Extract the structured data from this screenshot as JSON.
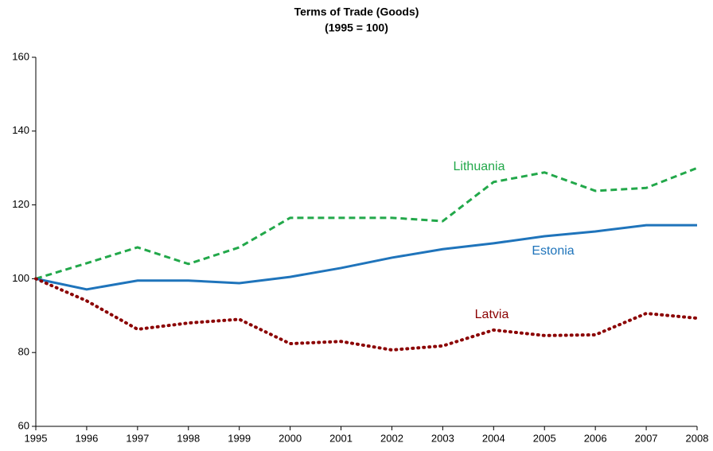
{
  "chart_data": {
    "type": "line",
    "title": "Terms of Trade (Goods)",
    "subtitle": "(1995 = 100)",
    "x": [
      1995,
      1996,
      1997,
      1998,
      1999,
      2000,
      2001,
      2002,
      2003,
      2004,
      2005,
      2006,
      2007,
      2008
    ],
    "xlim": [
      1995,
      2008
    ],
    "xticks": [
      1995,
      1996,
      1997,
      1998,
      1999,
      2000,
      2001,
      2002,
      2003,
      2004,
      2005,
      2006,
      2007,
      2008
    ],
    "ylim": [
      60,
      160
    ],
    "yticks": [
      60,
      80,
      100,
      120,
      140,
      160
    ],
    "grid": false,
    "series": [
      {
        "name": "Lithuania",
        "color": "#22a84a",
        "style": "dashed",
        "values": [
          100,
          104.2,
          108.5,
          104,
          108.5,
          116.5,
          116.5,
          116.5,
          115.6,
          126.2,
          128.8,
          123.8,
          124.6,
          130
        ]
      },
      {
        "name": "Estonia",
        "color": "#1f74bb",
        "style": "solid",
        "values": [
          100,
          97.1,
          99.5,
          99.5,
          98.8,
          100.5,
          102.9,
          105.7,
          108,
          109.6,
          111.5,
          112.8,
          114.5,
          114.5
        ]
      },
      {
        "name": "Latvia",
        "color": "#8b0000",
        "style": "dotted",
        "values": [
          100,
          94,
          86.3,
          88,
          89,
          82.4,
          83,
          80.7,
          81.8,
          86.1,
          84.6,
          84.8,
          90.6,
          89.3
        ]
      }
    ]
  }
}
